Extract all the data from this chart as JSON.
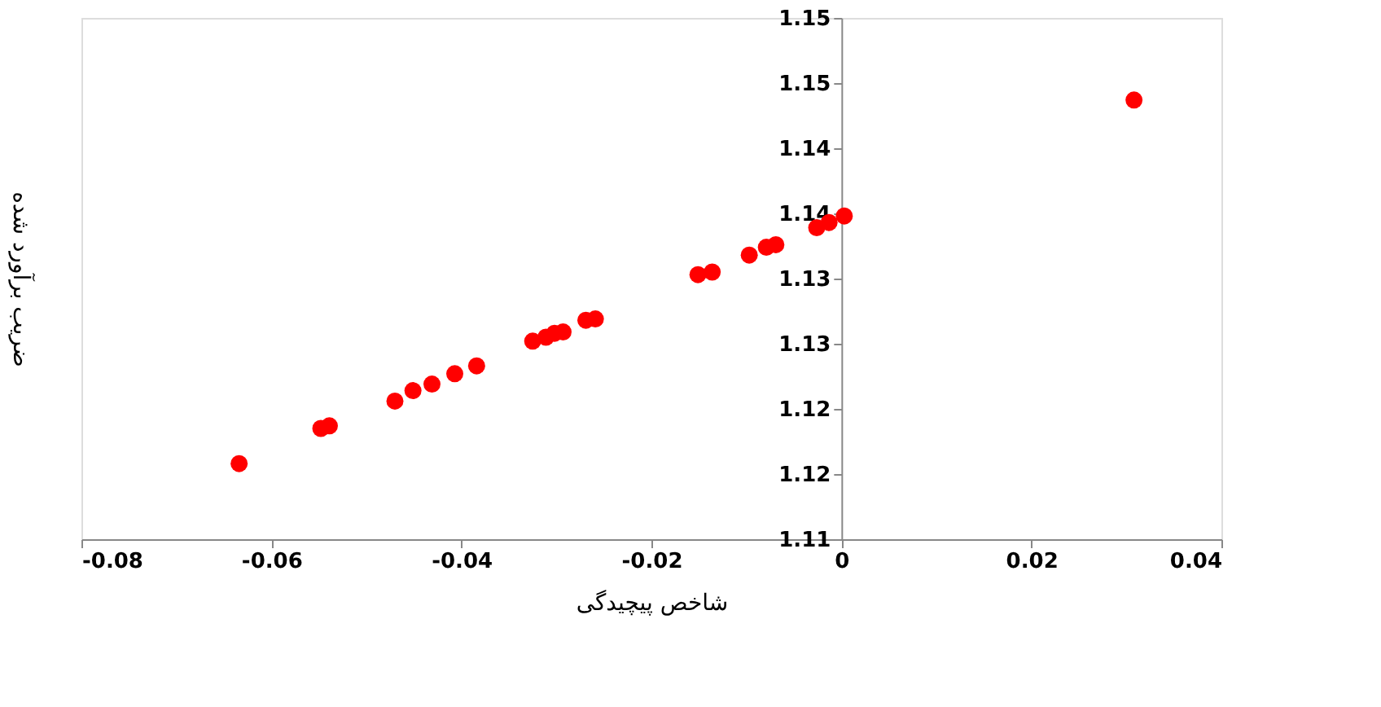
{
  "chart_data": {
    "type": "scatter",
    "xlabel": "شاخص پیچیدگی",
    "ylabel": "ضریب برآورد شده",
    "x": [
      -0.0634,
      -0.0548,
      -0.0539,
      -0.047,
      -0.0451,
      -0.0431,
      -0.0407,
      -0.0384,
      -0.0325,
      -0.0311,
      -0.0302,
      -0.0293,
      -0.0269,
      -0.0259,
      -0.0151,
      -0.0136,
      -0.0097,
      -0.0079,
      -0.0069,
      -0.0026,
      -0.0013,
      0.0003,
      0.0308
    ],
    "series": [
      {
        "color": "#ff0000",
        "values": [
          1.1158,
          1.1185,
          1.1187,
          1.1206,
          1.1214,
          1.1219,
          1.1227,
          1.1233,
          1.1252,
          1.1255,
          1.1258,
          1.1259,
          1.1268,
          1.1269,
          1.1303,
          1.1305,
          1.1318,
          1.1324,
          1.1326,
          1.1339,
          1.1343,
          1.1348,
          1.1437
        ]
      }
    ],
    "xlim": [
      -0.08,
      0.04
    ],
    "xticks": [
      -0.08,
      -0.06,
      -0.04,
      -0.02,
      0,
      0.02,
      0.04
    ],
    "ylim": [
      1.11,
      1.15
    ],
    "yticks": [
      1.11,
      {
        "value": 1.115,
        "label": "1.12"
      },
      1.12,
      {
        "value": 1.125,
        "label": "1.13"
      },
      1.13,
      {
        "value": 1.135,
        "label": "1.14"
      },
      1.14,
      {
        "value": 1.145,
        "label": "1.15"
      },
      1.15
    ],
    "marker": "circle",
    "grid": false,
    "legend": false
  }
}
